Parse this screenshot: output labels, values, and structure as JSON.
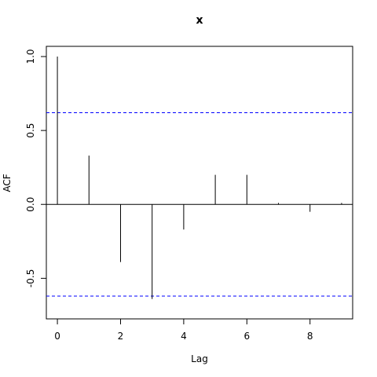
{
  "chart_data": {
    "type": "bar",
    "title": "x",
    "xlabel": "Lag",
    "ylabel": "ACF",
    "x": [
      0,
      1,
      2,
      3,
      4,
      5,
      6,
      7,
      8,
      9
    ],
    "values": [
      1.0,
      0.33,
      -0.39,
      -0.64,
      -0.17,
      0.2,
      0.2,
      0.01,
      -0.05,
      0.01
    ],
    "xlim": [
      -0.35,
      9.35
    ],
    "ylim": [
      -0.7,
      1.0
    ],
    "x_ticks": [
      0,
      2,
      4,
      6,
      8
    ],
    "x_tick_labels": [
      "0",
      "2",
      "4",
      "6",
      "8"
    ],
    "y_ticks": [
      -0.5,
      0.0,
      0.5,
      1.0
    ],
    "y_tick_labels": [
      "-0.5",
      "0.0",
      "0.5",
      "1.0"
    ],
    "confidence_bound": 0.62,
    "confidence_color": "#0000ff",
    "grid": false
  }
}
